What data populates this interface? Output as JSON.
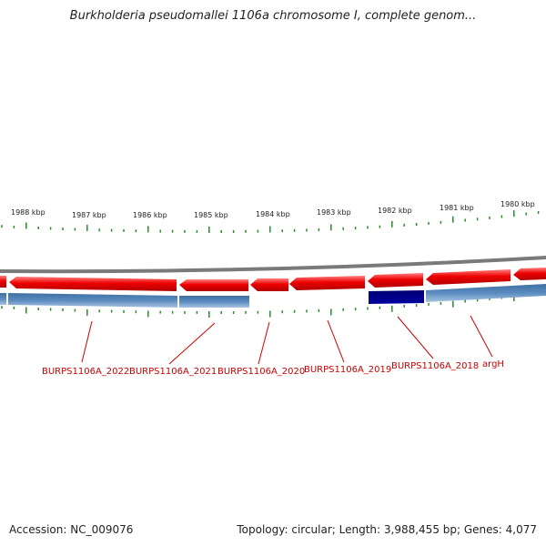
{
  "title": "Burkholderia pseudomallei 1106a chromosome I, complete genom...",
  "footer": {
    "accession": "Accession: NC_009076",
    "topology": "Topology: circular; Length: 3,988,455 bp; Genes: 4,077"
  },
  "ruler": [
    {
      "label": "1988 kbp",
      "kbp": 1988
    },
    {
      "label": "1987 kbp",
      "kbp": 1987
    },
    {
      "label": "1986 kbp",
      "kbp": 1986
    },
    {
      "label": "1985 kbp",
      "kbp": 1985
    },
    {
      "label": "1984 kbp",
      "kbp": 1984
    },
    {
      "label": "1983 kbp",
      "kbp": 1983
    },
    {
      "label": "1982 kbp",
      "kbp": 1982
    },
    {
      "label": "1981 kbp",
      "kbp": 1981
    },
    {
      "label": "1980 kbp",
      "kbp": 1980
    }
  ],
  "genes": [
    {
      "name": "BURPS1106A_2022"
    },
    {
      "name": "BURPS1106A_2021"
    },
    {
      "name": "BURPS1106A_2020"
    },
    {
      "name": "BURPS1106A_2019"
    },
    {
      "name": "BURPS1106A_2018"
    },
    {
      "name": "argH"
    }
  ],
  "colors": {
    "cds": "#ee0000",
    "gene_track": "#4a7fb5",
    "gene_track_highlight": "#000080",
    "backbone": "#888888",
    "ticks": "#2a8a2a",
    "label": "#cc0000"
  }
}
